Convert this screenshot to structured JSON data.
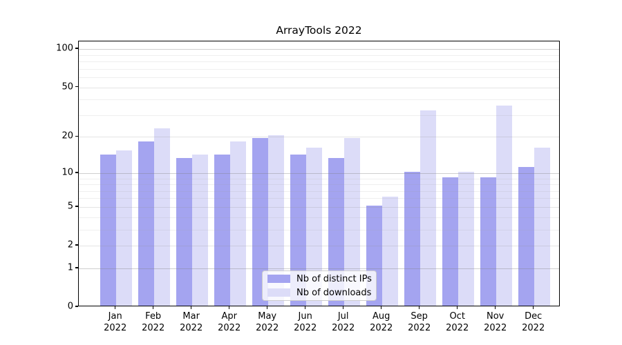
{
  "chart_data": {
    "type": "bar",
    "title": "ArrayTools 2022",
    "categories": [
      "Jan",
      "Feb",
      "Mar",
      "Apr",
      "May",
      "Jun",
      "Jul",
      "Aug",
      "Sep",
      "Oct",
      "Nov",
      "Dec"
    ],
    "year": "2022",
    "series": [
      {
        "name": "Nb of distinct IPs",
        "color": "#a4a4f0",
        "values": [
          14,
          18,
          13,
          14,
          19,
          14,
          13,
          5,
          10,
          9,
          9,
          11
        ]
      },
      {
        "name": "Nb of downloads",
        "color": "#dcdcf8",
        "values": [
          15,
          23,
          14,
          18,
          20,
          16,
          19,
          6,
          32,
          10,
          35,
          16
        ]
      }
    ],
    "y_axis": {
      "scale": "log10(1+v)",
      "ticks": [
        0,
        1,
        2,
        5,
        10,
        20,
        50,
        100
      ],
      "major_gridlines": [
        1,
        10,
        100
      ],
      "mid_gridlines": [
        2,
        5,
        20,
        50
      ],
      "minor_gridlines": [
        3,
        4,
        6,
        7,
        8,
        9,
        30,
        40,
        60,
        70,
        80,
        90
      ],
      "ylim": [
        0,
        115
      ]
    },
    "x_axis": {
      "tick_label_format": "month over year, two lines"
    },
    "legend": {
      "position": "lower center",
      "entries": [
        "Nb of distinct IPs",
        "Nb of downloads"
      ]
    },
    "grid": "on (horizontal major + minor)"
  }
}
